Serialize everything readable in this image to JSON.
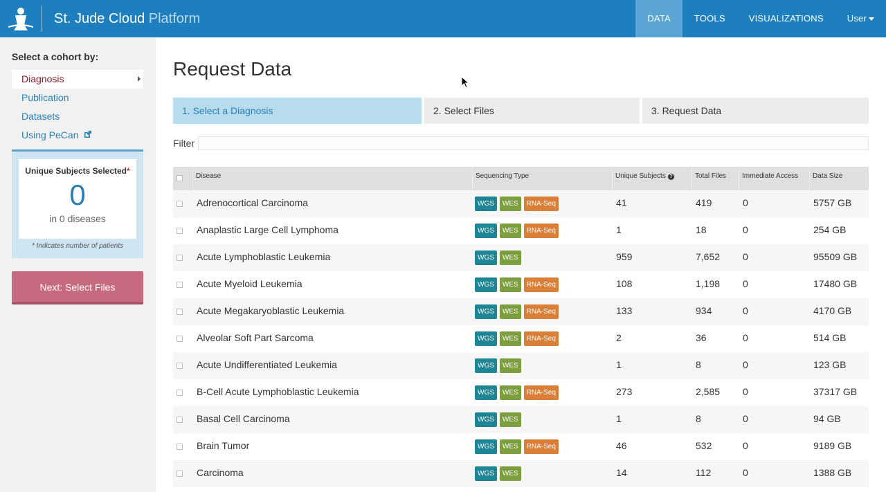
{
  "header": {
    "brand_main": "St. Jude Cloud",
    "brand_sub": " Platform",
    "nav": [
      {
        "label": "DATA"
      },
      {
        "label": "TOOLS"
      },
      {
        "label": "VISUALIZATIONS"
      },
      {
        "label": "User"
      }
    ]
  },
  "sidebar": {
    "title": "Select a cohort by:",
    "items": [
      {
        "label": "Diagnosis"
      },
      {
        "label": "Publication"
      },
      {
        "label": "Datasets"
      },
      {
        "label": "Using PeCan"
      }
    ],
    "subjects": {
      "label": "Unique Subjects Selected",
      "asterisk": "*",
      "count": "0",
      "sub": "in 0 diseases",
      "note": "* Indicates number of patients"
    },
    "next_button": "Next: Select Files"
  },
  "main": {
    "title": "Request Data",
    "steps": [
      {
        "label": "1. Select a Diagnosis"
      },
      {
        "label": "2. Select Files"
      },
      {
        "label": "3. Request Data"
      }
    ],
    "filter_label": "Filter",
    "filter_value": ""
  },
  "table": {
    "columns": [
      "Disease",
      "Sequencing Type",
      "Unique Subjects",
      "Total Files",
      "Immediate Access",
      "Data Size"
    ],
    "tag_labels": {
      "wgs": "WGS",
      "wes": "WES",
      "rna": "RNA-Seq"
    },
    "rows": [
      {
        "disease": "Adrenocortical Carcinoma",
        "types": [
          "wgs",
          "wes",
          "rna"
        ],
        "subjects": "41",
        "files": "419",
        "access": "0",
        "size": "5757 GB"
      },
      {
        "disease": "Anaplastic Large Cell Lymphoma",
        "types": [
          "wgs",
          "wes",
          "rna"
        ],
        "subjects": "1",
        "files": "18",
        "access": "0",
        "size": "254 GB"
      },
      {
        "disease": "Acute Lymphoblastic Leukemia",
        "types": [
          "wgs",
          "wes"
        ],
        "subjects": "959",
        "files": "7,652",
        "access": "0",
        "size": "95509 GB"
      },
      {
        "disease": "Acute Myeloid Leukemia",
        "types": [
          "wgs",
          "wes",
          "rna"
        ],
        "subjects": "108",
        "files": "1,198",
        "access": "0",
        "size": "17480 GB"
      },
      {
        "disease": "Acute Megakaryoblastic Leukemia",
        "types": [
          "wgs",
          "wes",
          "rna"
        ],
        "subjects": "133",
        "files": "934",
        "access": "0",
        "size": "4170 GB"
      },
      {
        "disease": "Alveolar Soft Part Sarcoma",
        "types": [
          "wgs",
          "wes",
          "rna"
        ],
        "subjects": "2",
        "files": "36",
        "access": "0",
        "size": "514 GB"
      },
      {
        "disease": "Acute Undifferentiated Leukemia",
        "types": [
          "wgs",
          "wes"
        ],
        "subjects": "1",
        "files": "8",
        "access": "0",
        "size": "123 GB"
      },
      {
        "disease": "B-Cell Acute Lymphoblastic Leukemia",
        "types": [
          "wgs",
          "wes",
          "rna"
        ],
        "subjects": "273",
        "files": "2,585",
        "access": "0",
        "size": "37317 GB"
      },
      {
        "disease": "Basal Cell Carcinoma",
        "types": [
          "wgs",
          "wes"
        ],
        "subjects": "1",
        "files": "8",
        "access": "0",
        "size": "94 GB"
      },
      {
        "disease": "Brain Tumor",
        "types": [
          "wgs",
          "wes",
          "rna"
        ],
        "subjects": "46",
        "files": "532",
        "access": "0",
        "size": "9189 GB"
      },
      {
        "disease": "Carcinoma",
        "types": [
          "wgs",
          "wes"
        ],
        "subjects": "14",
        "files": "112",
        "access": "0",
        "size": "1388 GB"
      }
    ]
  },
  "colors": {
    "header_bg": "#1d7fbd",
    "nav_active": "#5aa5d3",
    "link": "#2a7fb5",
    "active_item": "#8a1c2b",
    "next_button": "#c86a7f",
    "wgs": "#1e8594",
    "wes": "#7d9e3e",
    "rna": "#d97f37"
  }
}
